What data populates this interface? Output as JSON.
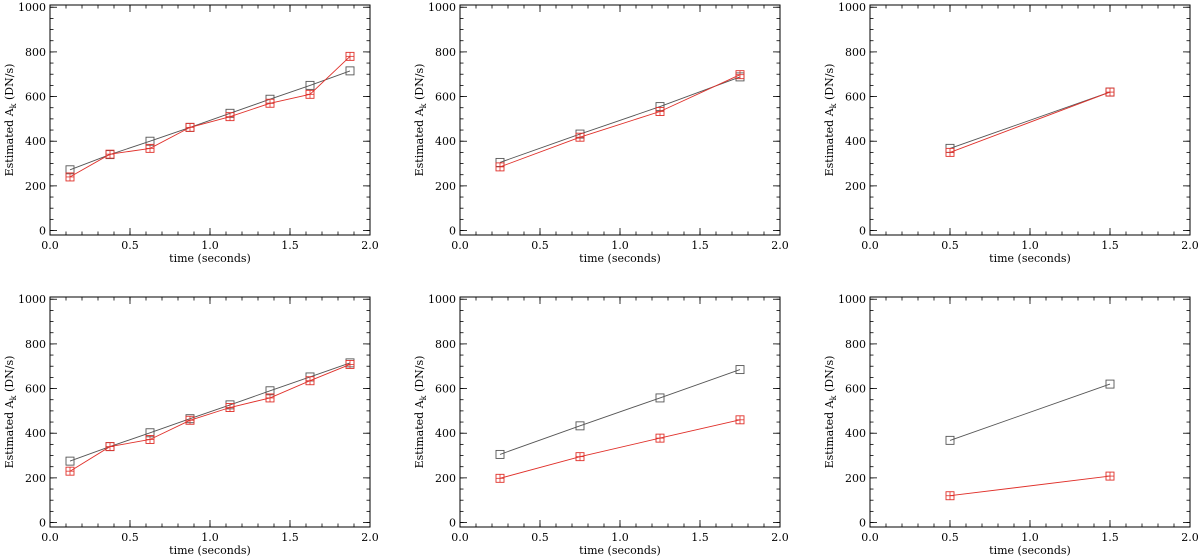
{
  "colors": {
    "black_series": "#555555",
    "red_series": "#e0302a"
  },
  "chart_data": [
    {
      "type": "line",
      "xlabel": "time (seconds)",
      "ylabel": {
        "prefix": "Estimated A",
        "subscript": "k",
        "suffix": " (DN/s)"
      },
      "xlim": [
        0,
        2
      ],
      "ylim": [
        -20,
        1010
      ],
      "xticks": [
        "0.0",
        "0.5",
        "1.0",
        "1.5",
        "2.0"
      ],
      "yticks": [
        "0",
        "200",
        "400",
        "600",
        "800",
        "1000"
      ],
      "series": [
        {
          "color": "#555555",
          "marker": "square",
          "x": [
            0.125,
            0.375,
            0.625,
            0.875,
            1.125,
            1.375,
            1.625,
            1.875
          ],
          "y": [
            272,
            340,
            400,
            462,
            525,
            588,
            650,
            715
          ]
        },
        {
          "color": "#e0302a",
          "marker": "square-plus",
          "x": [
            0.125,
            0.375,
            0.625,
            0.875,
            1.125,
            1.375,
            1.625,
            1.875
          ],
          "y": [
            240,
            342,
            368,
            462,
            510,
            570,
            610,
            780
          ]
        }
      ]
    },
    {
      "type": "line",
      "xlabel": "time (seconds)",
      "ylabel": {
        "prefix": "Estimated A",
        "subscript": "k",
        "suffix": " (DN/s)"
      },
      "xlim": [
        0,
        2
      ],
      "ylim": [
        -20,
        1010
      ],
      "xticks": [
        "0.0",
        "0.5",
        "1.0",
        "1.5",
        "2.0"
      ],
      "yticks": [
        "0",
        "200",
        "400",
        "600",
        "800",
        "1000"
      ],
      "series": [
        {
          "color": "#555555",
          "marker": "square",
          "x": [
            0.25,
            0.75,
            1.25,
            1.75
          ],
          "y": [
            305,
            432,
            555,
            688
          ]
        },
        {
          "color": "#e0302a",
          "marker": "square-plus",
          "x": [
            0.25,
            0.75,
            1.25,
            1.75
          ],
          "y": [
            285,
            418,
            533,
            698
          ]
        }
      ]
    },
    {
      "type": "line",
      "xlabel": "time (seconds)",
      "ylabel": {
        "prefix": "Estimated A",
        "subscript": "k",
        "suffix": " (DN/s)"
      },
      "xlim": [
        0,
        2
      ],
      "ylim": [
        -20,
        1010
      ],
      "xticks": [
        "0.0",
        "0.5",
        "1.0",
        "1.5",
        "2.0"
      ],
      "yticks": [
        "0",
        "200",
        "400",
        "600",
        "800",
        "1000"
      ],
      "series": [
        {
          "color": "#555555",
          "marker": "square",
          "x": [
            0.5,
            1.5
          ],
          "y": [
            368,
            620
          ]
        },
        {
          "color": "#e0302a",
          "marker": "square-plus",
          "x": [
            0.5,
            1.5
          ],
          "y": [
            350,
            620
          ]
        }
      ]
    },
    {
      "type": "line",
      "xlabel": "time (seconds)",
      "ylabel": {
        "prefix": "Estimated A",
        "subscript": "k",
        "suffix": " (DN/s)"
      },
      "xlim": [
        0,
        2
      ],
      "ylim": [
        -20,
        1010
      ],
      "xticks": [
        "0.0",
        "0.5",
        "1.0",
        "1.5",
        "2.0"
      ],
      "yticks": [
        "0",
        "200",
        "400",
        "600",
        "800",
        "1000"
      ],
      "series": [
        {
          "color": "#555555",
          "marker": "square",
          "x": [
            0.125,
            0.375,
            0.625,
            0.875,
            1.125,
            1.375,
            1.625,
            1.875
          ],
          "y": [
            275,
            340,
            402,
            465,
            527,
            590,
            652,
            715
          ]
        },
        {
          "color": "#e0302a",
          "marker": "square-plus",
          "x": [
            0.125,
            0.375,
            0.625,
            0.875,
            1.125,
            1.375,
            1.625,
            1.875
          ],
          "y": [
            230,
            340,
            372,
            458,
            515,
            558,
            635,
            708
          ]
        }
      ]
    },
    {
      "type": "line",
      "xlabel": "time (seconds)",
      "ylabel": {
        "prefix": "Estimated A",
        "subscript": "k",
        "suffix": " (DN/s)"
      },
      "xlim": [
        0,
        2
      ],
      "ylim": [
        -20,
        1010
      ],
      "xticks": [
        "0.0",
        "0.5",
        "1.0",
        "1.5",
        "2.0"
      ],
      "yticks": [
        "0",
        "200",
        "400",
        "600",
        "800",
        "1000"
      ],
      "series": [
        {
          "color": "#555555",
          "marker": "square",
          "x": [
            0.25,
            0.75,
            1.25,
            1.75
          ],
          "y": [
            305,
            433,
            558,
            685
          ]
        },
        {
          "color": "#e0302a",
          "marker": "square-plus",
          "x": [
            0.25,
            0.75,
            1.25,
            1.75
          ],
          "y": [
            198,
            295,
            378,
            460
          ]
        }
      ]
    },
    {
      "type": "line",
      "xlabel": "time (seconds)",
      "ylabel": {
        "prefix": "Estimated A",
        "subscript": "k",
        "suffix": " (DN/s)"
      },
      "xlim": [
        0,
        2
      ],
      "ylim": [
        -20,
        1010
      ],
      "xticks": [
        "0.0",
        "0.5",
        "1.0",
        "1.5",
        "2.0"
      ],
      "yticks": [
        "0",
        "200",
        "400",
        "600",
        "800",
        "1000"
      ],
      "series": [
        {
          "color": "#555555",
          "marker": "square",
          "x": [
            0.5,
            1.5
          ],
          "y": [
            368,
            620
          ]
        },
        {
          "color": "#e0302a",
          "marker": "square-plus",
          "x": [
            0.5,
            1.5
          ],
          "y": [
            120,
            208
          ]
        }
      ]
    }
  ]
}
